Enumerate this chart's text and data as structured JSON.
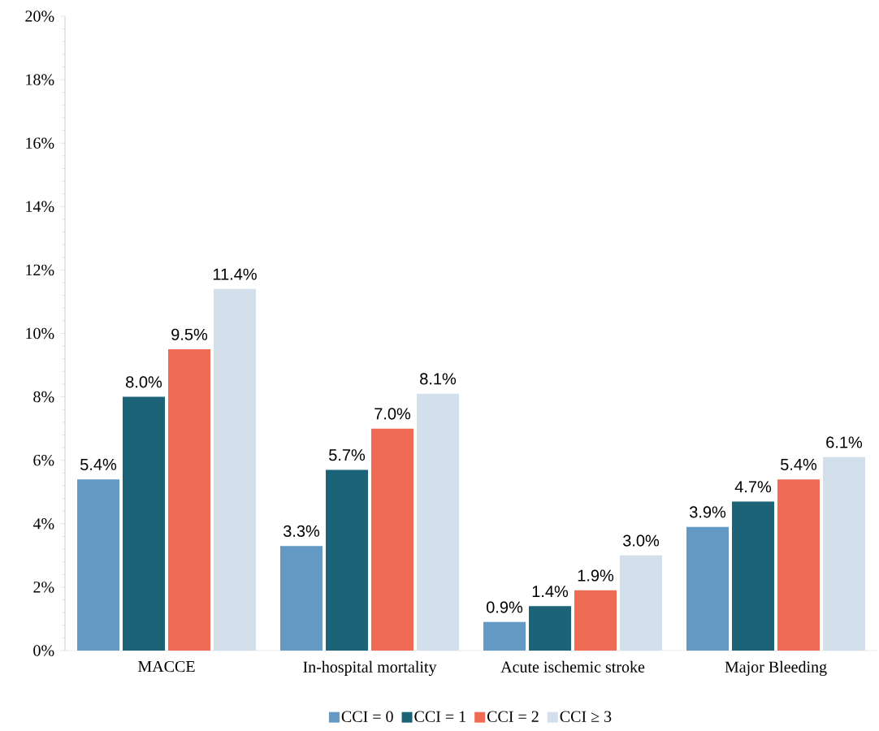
{
  "chart_data": {
    "type": "bar",
    "categories": [
      "MACCE",
      "In-hospital mortality",
      "Acute ischemic stroke",
      "Major Bleeding"
    ],
    "series": [
      {
        "name": "CCI = 0",
        "color": "#6399c2",
        "values": [
          5.4,
          3.3,
          0.9,
          3.9
        ],
        "value_labels": [
          "5.4%",
          "3.3%",
          "0.9%",
          "3.9%"
        ]
      },
      {
        "name": "CCI = 1",
        "color": "#1c6378",
        "values": [
          8.0,
          5.7,
          1.4,
          4.7
        ],
        "value_labels": [
          "8.0%",
          "5.7%",
          "1.4%",
          "4.7%"
        ]
      },
      {
        "name": "CCI = 2",
        "color": "#f06b54",
        "values": [
          9.5,
          7.0,
          1.9,
          5.4
        ],
        "value_labels": [
          "9.5%",
          "7.0%",
          "1.9%",
          "5.4%"
        ]
      },
      {
        "name": "CCI ≥ 3",
        "color": "#d3dfea",
        "values": [
          11.4,
          8.1,
          3.0,
          6.1
        ],
        "value_labels": [
          "11.4%",
          "8.1%",
          "3.0%",
          "6.1%"
        ]
      }
    ],
    "ylim": [
      0,
      20
    ],
    "yticks": [
      {
        "value": 0,
        "label": "0%"
      },
      {
        "value": 2,
        "label": "2%"
      },
      {
        "value": 4,
        "label": "4%"
      },
      {
        "value": 6,
        "label": "6%"
      },
      {
        "value": 8,
        "label": "8%"
      },
      {
        "value": 10,
        "label": "10%"
      },
      {
        "value": 12,
        "label": "12%"
      },
      {
        "value": 14,
        "label": "14%"
      },
      {
        "value": 16,
        "label": "16%"
      },
      {
        "value": 18,
        "label": "18%"
      },
      {
        "value": 20,
        "label": "20%"
      }
    ],
    "legend": "bottom"
  }
}
